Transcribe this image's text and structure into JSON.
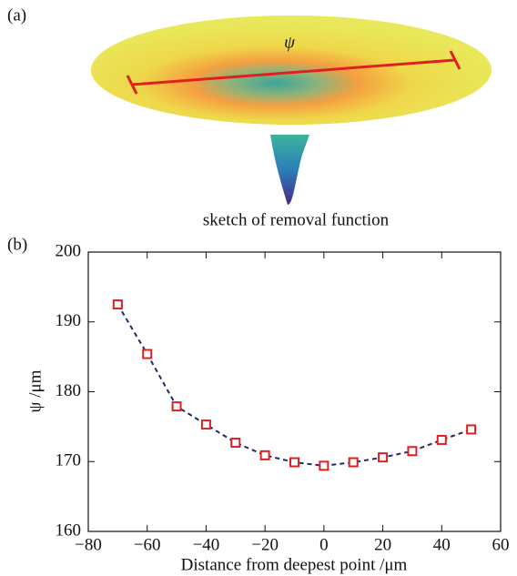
{
  "panels": [
    "(a)",
    "(b)"
  ],
  "sketch": {
    "label": "ψ",
    "caption": "sketch of removal function"
  },
  "chart_data": {
    "type": "line",
    "xlabel": "Distance from deepest point /μm",
    "ylabel": "ψ /μm",
    "x": [
      -70,
      -60,
      -50,
      -40,
      -30,
      -20,
      -10,
      0,
      10,
      20,
      30,
      40,
      50
    ],
    "series": [
      {
        "color": "#1f2a6b",
        "marker_color": "#e02020",
        "values": [
          192.5,
          185.4,
          177.9,
          175.3,
          172.7,
          170.9,
          169.9,
          169.4,
          169.9,
          170.6,
          171.5,
          173.1,
          174.6
        ]
      }
    ],
    "xlim": [
      -80,
      60
    ],
    "xticks": [
      {
        "value": -80,
        "label": "−80"
      },
      {
        "value": -60,
        "label": "−60"
      },
      {
        "value": -40,
        "label": "−40"
      },
      {
        "value": -20,
        "label": "−20"
      },
      0,
      20,
      40,
      60
    ],
    "ylim": [
      160,
      200
    ],
    "yticks": [
      160,
      170,
      180,
      190,
      200
    ]
  }
}
